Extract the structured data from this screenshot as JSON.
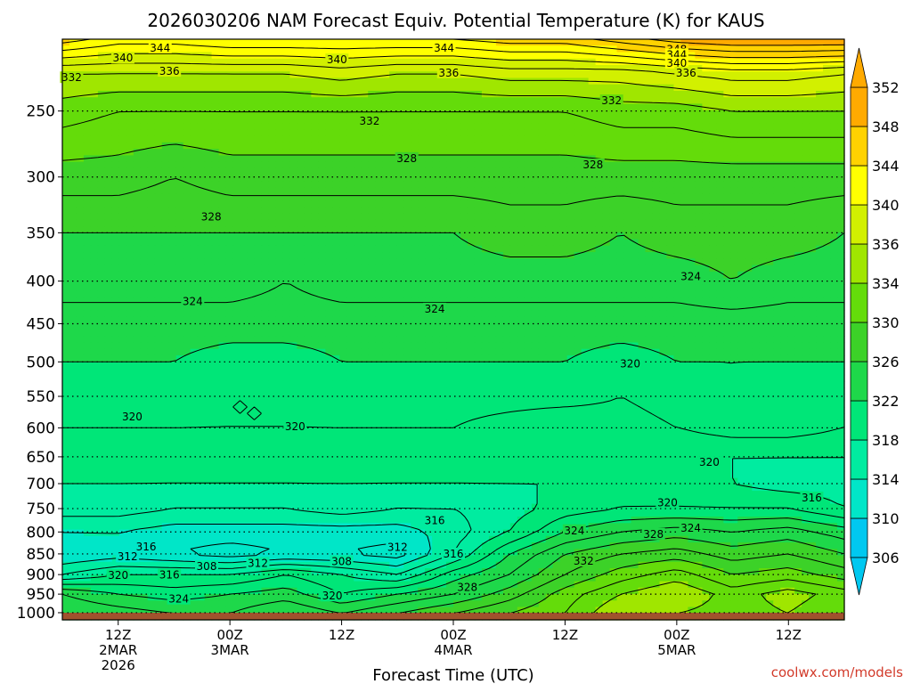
{
  "chart_data": {
    "type": "heatmap",
    "title": "2026030206 NAM Forecast Equiv. Potential Temperature (K) for KAUS",
    "xlabel": "Forecast Time (UTC)",
    "ylabel": "",
    "credit": "coolwx.com/models",
    "y_scale": "log",
    "ylim": [
      1020,
      205
    ],
    "xlim_hours": [
      -3,
      81
    ],
    "y_ticks": [
      250,
      300,
      350,
      400,
      450,
      500,
      550,
      600,
      650,
      700,
      750,
      800,
      850,
      900,
      950,
      1000
    ],
    "x_ticks": [
      {
        "hour": 3,
        "lines": [
          "12Z",
          "2MAR",
          "2026"
        ]
      },
      {
        "hour": 15,
        "lines": [
          "00Z",
          "3MAR"
        ]
      },
      {
        "hour": 27,
        "lines": [
          "12Z"
        ]
      },
      {
        "hour": 39,
        "lines": [
          "00Z",
          "4MAR"
        ]
      },
      {
        "hour": 51,
        "lines": [
          "12Z"
        ]
      },
      {
        "hour": 63,
        "lines": [
          "00Z",
          "5MAR"
        ]
      },
      {
        "hour": 75,
        "lines": [
          "12Z"
        ]
      }
    ],
    "colorbar": {
      "levels": [
        306,
        310,
        314,
        318,
        322,
        326,
        330,
        334,
        336,
        340,
        344,
        348,
        352
      ],
      "colors": [
        "#00c8f0",
        "#00e6c8",
        "#00eca0",
        "#00e678",
        "#1ed84a",
        "#3cd228",
        "#64dc0a",
        "#a0e600",
        "#d2f000",
        "#ffff00",
        "#ffd200",
        "#ffaa00"
      ]
    },
    "ground_color": "#a0522d",
    "ground_from_hpa": 1000,
    "profile_pressures": [
      1000,
      950,
      900,
      850,
      800,
      750,
      700,
      650,
      600,
      550,
      500,
      450,
      400,
      350,
      300,
      250,
      225,
      205
    ],
    "profile_hours": [
      -3,
      3,
      9,
      15,
      21,
      27,
      33,
      39,
      45,
      51,
      57,
      63,
      69,
      75,
      81
    ],
    "values": [
      [
        326,
        325,
        324,
        324,
        326,
        324,
        326,
        328,
        330,
        332,
        336,
        334,
        333,
        334,
        332
      ],
      [
        324,
        322,
        321,
        322,
        323,
        320,
        322,
        324,
        327,
        331,
        334,
        336,
        333,
        335,
        333
      ],
      [
        316,
        318,
        318,
        318,
        320,
        318,
        316,
        321,
        324,
        328,
        331,
        333,
        330,
        331,
        329
      ],
      [
        312,
        313,
        312,
        311,
        312,
        312,
        311,
        316,
        322,
        326,
        328,
        329,
        327,
        328,
        326
      ],
      [
        314,
        314,
        313,
        313,
        313,
        313,
        313,
        315,
        318,
        322,
        324,
        325,
        324,
        325,
        323
      ],
      [
        317,
        317,
        316,
        316,
        316,
        317,
        316,
        316,
        317,
        319,
        320,
        320,
        320,
        320,
        318
      ],
      [
        318,
        318,
        318,
        318,
        318,
        318,
        318,
        318,
        318,
        318,
        319,
        319,
        318,
        317,
        317
      ],
      [
        319,
        319,
        319,
        319,
        319,
        319,
        319,
        319,
        319,
        318,
        318,
        318,
        318,
        318,
        318
      ],
      [
        320,
        320,
        320,
        320,
        320,
        320,
        320,
        320,
        319,
        318,
        319,
        320,
        321,
        321,
        320
      ],
      [
        321,
        321,
        321,
        320,
        320,
        321,
        321,
        321,
        321,
        321,
        320,
        321,
        322,
        321,
        321
      ],
      [
        322,
        322,
        322,
        321,
        321,
        322,
        322,
        322,
        322,
        322,
        321,
        322,
        322,
        322,
        322
      ],
      [
        323,
        323,
        323,
        323,
        323,
        323,
        323,
        323,
        323,
        323,
        323,
        323,
        323,
        323,
        323
      ],
      [
        325,
        325,
        325,
        325,
        324,
        325,
        325,
        325,
        325,
        325,
        325,
        325,
        326,
        325,
        325
      ],
      [
        326,
        326,
        326,
        326,
        326,
        326,
        326,
        326,
        327,
        327,
        326,
        327,
        327,
        327,
        326
      ],
      [
        329,
        329,
        328,
        329,
        329,
        329,
        329,
        329,
        329,
        329,
        329,
        329,
        329,
        329,
        329
      ],
      [
        333,
        332,
        332,
        332,
        332,
        332,
        332,
        332,
        332,
        332,
        333,
        333,
        334,
        334,
        334
      ],
      [
        336,
        336,
        336,
        336,
        336,
        337,
        336,
        336,
        337,
        337,
        337,
        338,
        339,
        339,
        338
      ],
      [
        345,
        343,
        343,
        344,
        344,
        344,
        344,
        344,
        345,
        345,
        347,
        349,
        350,
        350,
        350
      ]
    ],
    "contour_labels": [
      {
        "text": "344",
        "hour": 7.5,
        "p": 210
      },
      {
        "text": "344",
        "hour": 38,
        "p": 210
      },
      {
        "text": "348",
        "hour": 63,
        "p": 211
      },
      {
        "text": "344",
        "hour": 63,
        "p": 214
      },
      {
        "text": "340",
        "hour": 3.5,
        "p": 216
      },
      {
        "text": "340",
        "hour": 26.5,
        "p": 217
      },
      {
        "text": "340",
        "hour": 63,
        "p": 219
      },
      {
        "text": "336",
        "hour": 8.5,
        "p": 224
      },
      {
        "text": "336",
        "hour": 38.5,
        "p": 225
      },
      {
        "text": "336",
        "hour": 64,
        "p": 225
      },
      {
        "text": "332",
        "hour": -2,
        "p": 228
      },
      {
        "text": "332",
        "hour": 30,
        "p": 257
      },
      {
        "text": "332",
        "hour": 56,
        "p": 243
      },
      {
        "text": "328",
        "hour": 34,
        "p": 285
      },
      {
        "text": "328",
        "hour": 54,
        "p": 290
      },
      {
        "text": "328",
        "hour": 13,
        "p": 335
      },
      {
        "text": "324",
        "hour": 11,
        "p": 423
      },
      {
        "text": "324",
        "hour": 37,
        "p": 432
      },
      {
        "text": "324",
        "hour": 64.5,
        "p": 395
      },
      {
        "text": "320",
        "hour": 58,
        "p": 503
      },
      {
        "text": "320",
        "hour": 4.5,
        "p": 582
      },
      {
        "text": "320",
        "hour": 22,
        "p": 598
      },
      {
        "text": "320",
        "hour": 66.5,
        "p": 660
      },
      {
        "text": "320",
        "hour": 62,
        "p": 738
      },
      {
        "text": "316",
        "hour": 77.5,
        "p": 728
      },
      {
        "text": "316",
        "hour": 37,
        "p": 775
      },
      {
        "text": "316",
        "hour": 6,
        "p": 834
      },
      {
        "text": "312",
        "hour": 4,
        "p": 857
      },
      {
        "text": "312",
        "hour": 33,
        "p": 835
      },
      {
        "text": "308",
        "hour": 12.5,
        "p": 880
      },
      {
        "text": "312",
        "hour": 18,
        "p": 872
      },
      {
        "text": "308",
        "hour": 27,
        "p": 868
      },
      {
        "text": "316",
        "hour": 39,
        "p": 850
      },
      {
        "text": "324",
        "hour": 52,
        "p": 797
      },
      {
        "text": "328",
        "hour": 60.5,
        "p": 805
      },
      {
        "text": "324",
        "hour": 64.5,
        "p": 792
      },
      {
        "text": "332",
        "hour": 53,
        "p": 867
      },
      {
        "text": "320",
        "hour": 3,
        "p": 902
      },
      {
        "text": "316",
        "hour": 8.5,
        "p": 901
      },
      {
        "text": "328",
        "hour": 40.5,
        "p": 932
      },
      {
        "text": "320",
        "hour": 26,
        "p": 955
      },
      {
        "text": "324",
        "hour": 9.5,
        "p": 963
      }
    ]
  }
}
